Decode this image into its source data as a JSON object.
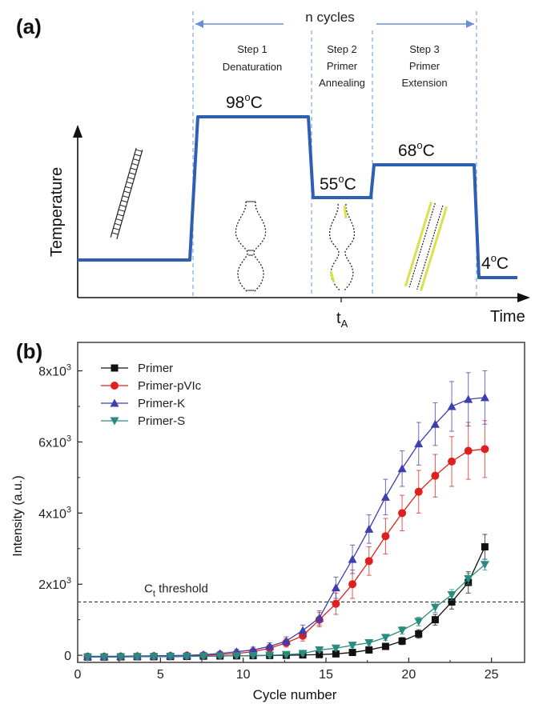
{
  "panel_a": {
    "label": "(a)",
    "cycle_label": "n cycles",
    "steps": [
      {
        "line1": "Step 1",
        "line2": "Denaturation",
        "line3": ""
      },
      {
        "line1": "Step 2",
        "line2": "Primer",
        "line3": "Annealing"
      },
      {
        "line1": "Step 3",
        "line2": "Primer",
        "line3": "Extension"
      }
    ],
    "temps": {
      "t98_num": "98",
      "t98_unit": "C",
      "t55_num": "55",
      "t55_unit": "C",
      "t68_num": "68",
      "t68_unit": "C",
      "t4_num": "4",
      "t4_unit": "C",
      "degree": "o"
    },
    "ylabel": "Temperature",
    "xlabel": "Time",
    "ta_main": "t",
    "ta_sub": "A",
    "line_color": "#2f5fb3"
  },
  "chart_data": {
    "type": "line",
    "label": "(b)",
    "xlabel": "Cycle number",
    "ylabel": "Intensity (a.u.)",
    "xlim": [
      0,
      27
    ],
    "ylim": [
      -200,
      8800
    ],
    "xticks": [
      0,
      5,
      10,
      15,
      20,
      25
    ],
    "yticks": [
      {
        "value": 0,
        "base": "0",
        "exp": ""
      },
      {
        "value": 2000,
        "base": "2x10",
        "exp": "3"
      },
      {
        "value": 4000,
        "base": "4x10",
        "exp": "3"
      },
      {
        "value": 6000,
        "base": "6x10",
        "exp": "3"
      },
      {
        "value": 8000,
        "base": "8x10",
        "exp": "3"
      }
    ],
    "threshold": {
      "value": 1500,
      "main": "C",
      "sub": "t",
      "rest": " threshold"
    },
    "legend_position": "top-left",
    "x": [
      0.6,
      1.6,
      2.6,
      3.6,
      4.6,
      5.6,
      6.6,
      7.6,
      8.6,
      9.6,
      10.6,
      11.6,
      12.6,
      13.6,
      14.6,
      15.6,
      16.6,
      17.6,
      18.6,
      19.6,
      20.6,
      21.6,
      22.6,
      23.6,
      24.6
    ],
    "series": [
      {
        "name": "Primer",
        "color": "#111111",
        "marker": "square",
        "values": [
          -50,
          -50,
          -45,
          -40,
          -40,
          -35,
          -30,
          -25,
          -20,
          -15,
          -10,
          -5,
          0,
          10,
          20,
          40,
          80,
          150,
          250,
          400,
          600,
          1000,
          1500,
          2050,
          3050
        ],
        "err": [
          80,
          60,
          60,
          60,
          60,
          60,
          60,
          60,
          60,
          60,
          60,
          60,
          60,
          60,
          60,
          60,
          60,
          70,
          80,
          100,
          120,
          150,
          200,
          300,
          350
        ]
      },
      {
        "name": "Primer-pVIc",
        "color": "#e0201e",
        "marker": "circle",
        "values": [
          -40,
          -40,
          -35,
          -30,
          -25,
          -20,
          -10,
          0,
          20,
          50,
          100,
          200,
          350,
          550,
          1000,
          1450,
          2000,
          2650,
          3350,
          4000,
          4600,
          5050,
          5450,
          5750,
          5800
        ],
        "err": [
          80,
          60,
          60,
          60,
          60,
          60,
          60,
          60,
          60,
          70,
          80,
          100,
          120,
          150,
          200,
          300,
          400,
          400,
          500,
          500,
          600,
          600,
          700,
          800,
          800
        ]
      },
      {
        "name": "Primer-K",
        "color": "#3e3eaf",
        "marker": "triangle-up",
        "values": [
          -30,
          -30,
          -25,
          -20,
          -15,
          -10,
          0,
          20,
          50,
          100,
          150,
          250,
          400,
          700,
          1050,
          1900,
          2700,
          3550,
          4450,
          5250,
          5950,
          6500,
          7000,
          7200,
          7250
        ],
        "err": [
          80,
          60,
          60,
          60,
          60,
          60,
          60,
          60,
          60,
          70,
          80,
          100,
          120,
          150,
          200,
          300,
          400,
          400,
          500,
          500,
          600,
          600,
          700,
          750,
          750
        ]
      },
      {
        "name": "Primer-S",
        "color": "#2a8c7f",
        "marker": "triangle-down",
        "values": [
          -50,
          -50,
          -45,
          -40,
          -40,
          -35,
          -30,
          -25,
          -20,
          -15,
          -10,
          0,
          20,
          50,
          150,
          200,
          280,
          350,
          500,
          700,
          950,
          1350,
          1700,
          2150,
          2550
        ],
        "err": [
          80,
          60,
          60,
          60,
          60,
          60,
          60,
          60,
          60,
          60,
          60,
          60,
          60,
          60,
          60,
          60,
          60,
          70,
          80,
          100,
          120,
          150,
          150,
          150,
          150
        ]
      }
    ]
  }
}
